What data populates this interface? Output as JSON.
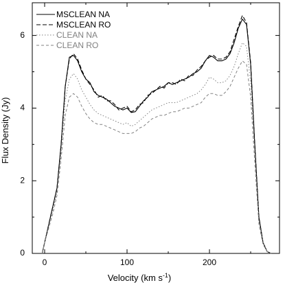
{
  "chart_data": {
    "type": "line",
    "title": "",
    "xlabel": "Velocity (km s",
    "xlabel_sup": "-1",
    "xlabel_tail": ")",
    "ylabel": "Flux Density (Jy)",
    "xlim": [
      -15,
      285
    ],
    "ylim": [
      0,
      6.9
    ],
    "xticks": [
      0,
      100,
      200
    ],
    "xtick_labels": [
      "0",
      "100",
      "200"
    ],
    "yticks": [
      0,
      2,
      4,
      6
    ],
    "ytick_labels": [
      "0",
      "2",
      "4",
      "6"
    ],
    "grid": false,
    "legend_position": "top-left",
    "x": [
      -3,
      0,
      5,
      10,
      15,
      20,
      25,
      30,
      35,
      40,
      45,
      50,
      55,
      60,
      65,
      70,
      75,
      80,
      85,
      90,
      95,
      100,
      105,
      110,
      115,
      120,
      125,
      130,
      135,
      140,
      145,
      150,
      155,
      160,
      165,
      170,
      175,
      180,
      185,
      190,
      195,
      200,
      205,
      210,
      215,
      220,
      225,
      230,
      235,
      240,
      245,
      250,
      255,
      260,
      265,
      270,
      275
    ],
    "series": [
      {
        "name": "MSCLEAN NA",
        "color": "#000000",
        "dash": "",
        "values": [
          0,
          0.3,
          0.8,
          1.3,
          1.8,
          3.0,
          4.6,
          5.4,
          5.45,
          5.3,
          5.0,
          4.8,
          4.7,
          4.45,
          4.35,
          4.3,
          4.25,
          4.15,
          4.05,
          4.0,
          3.95,
          4.0,
          3.88,
          3.9,
          4.05,
          4.2,
          4.3,
          4.45,
          4.5,
          4.55,
          4.6,
          4.7,
          4.65,
          4.7,
          4.75,
          4.8,
          4.85,
          4.95,
          5.0,
          5.1,
          5.3,
          5.45,
          5.4,
          5.3,
          5.3,
          5.35,
          5.5,
          5.8,
          6.2,
          6.45,
          6.3,
          5.2,
          3.0,
          1.0,
          0.3,
          0.05,
          0
        ]
      },
      {
        "name": "MSCLEAN RO",
        "color": "#000000",
        "dash": "6,3",
        "values": [
          0,
          0.3,
          0.8,
          1.3,
          1.8,
          3.0,
          4.6,
          5.35,
          5.5,
          5.35,
          5.05,
          4.8,
          4.65,
          4.5,
          4.3,
          4.35,
          4.2,
          4.2,
          4.1,
          3.95,
          4.0,
          4.05,
          3.9,
          3.95,
          4.1,
          4.15,
          4.35,
          4.4,
          4.5,
          4.6,
          4.55,
          4.7,
          4.7,
          4.65,
          4.8,
          4.75,
          4.9,
          4.9,
          5.05,
          5.15,
          5.3,
          5.4,
          5.45,
          5.35,
          5.35,
          5.4,
          5.55,
          5.9,
          6.25,
          6.55,
          6.35,
          5.25,
          3.0,
          1.0,
          0.3,
          0.05,
          0
        ]
      },
      {
        "name": "CLEAN NA",
        "color": "#808080",
        "dash": "1.5,2.5",
        "values": [
          0,
          0.3,
          0.75,
          1.2,
          1.7,
          2.8,
          4.2,
          4.8,
          4.95,
          4.8,
          4.5,
          4.3,
          4.1,
          3.95,
          3.85,
          3.8,
          3.75,
          3.7,
          3.65,
          3.6,
          3.55,
          3.6,
          3.5,
          3.55,
          3.65,
          3.75,
          3.85,
          3.95,
          4.0,
          4.05,
          4.1,
          4.15,
          4.15,
          4.15,
          4.2,
          4.25,
          4.3,
          4.35,
          4.4,
          4.5,
          4.65,
          4.85,
          4.8,
          4.7,
          4.7,
          4.75,
          4.9,
          5.15,
          5.5,
          5.8,
          5.7,
          4.7,
          2.8,
          0.9,
          0.3,
          0.05,
          0
        ]
      },
      {
        "name": "CLEAN RO",
        "color": "#808080",
        "dash": "4,3",
        "values": [
          0,
          0.3,
          0.7,
          1.1,
          1.6,
          2.6,
          3.8,
          4.3,
          4.4,
          4.3,
          4.05,
          3.85,
          3.7,
          3.6,
          3.55,
          3.55,
          3.5,
          3.45,
          3.4,
          3.35,
          3.3,
          3.3,
          3.3,
          3.35,
          3.45,
          3.5,
          3.6,
          3.7,
          3.75,
          3.8,
          3.8,
          3.85,
          3.9,
          3.9,
          3.95,
          4.0,
          4.0,
          4.05,
          4.1,
          4.15,
          4.3,
          4.4,
          4.4,
          4.35,
          4.35,
          4.45,
          4.6,
          4.85,
          5.1,
          5.3,
          5.2,
          4.3,
          2.5,
          0.8,
          0.25,
          0.05,
          0
        ]
      }
    ]
  }
}
